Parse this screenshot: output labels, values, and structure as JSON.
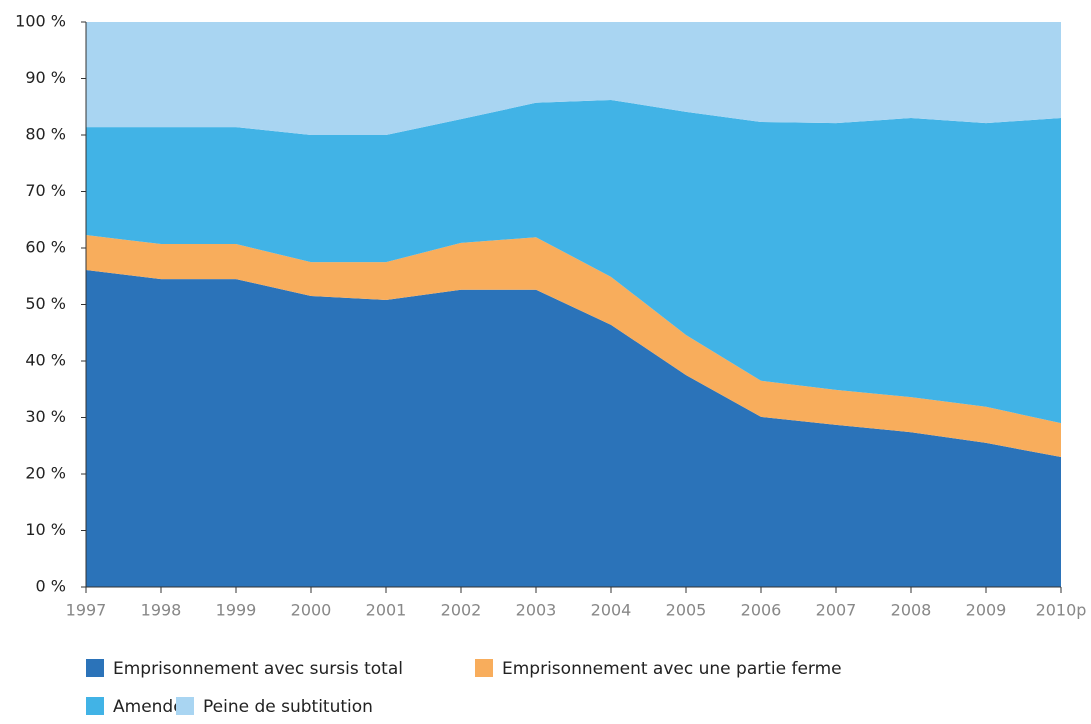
{
  "chart_data": {
    "type": "stacked_area",
    "categories": [
      "1997",
      "1998",
      "1999",
      "2000",
      "2001",
      "2002",
      "2003",
      "2004",
      "2005",
      "2006",
      "2007",
      "2008",
      "2009",
      "2010p"
    ],
    "series": [
      {
        "name": "Emprisonnement avec sursis total",
        "color": "#2b73b9",
        "values": [
          56.1,
          54.5,
          54.5,
          51.5,
          50.8,
          52.6,
          52.6,
          46.4,
          37.5,
          30.1,
          28.7,
          27.4,
          25.5,
          23.0
        ]
      },
      {
        "name": "Emprisonnement avec une partie ferme",
        "color": "#f8ad5c",
        "values": [
          6.2,
          6.2,
          6.2,
          6.0,
          6.7,
          8.3,
          9.3,
          8.5,
          7.1,
          6.4,
          6.2,
          6.2,
          6.4,
          6.0
        ]
      },
      {
        "name": "Amende",
        "color": "#41b3e6",
        "values": [
          19.1,
          20.7,
          20.7,
          22.5,
          22.5,
          21.9,
          23.8,
          31.3,
          39.5,
          45.8,
          47.2,
          49.4,
          50.2,
          54.0
        ]
      },
      {
        "name": "Peine de subtitution",
        "color": "#a9d5f2",
        "values": [
          18.6,
          18.6,
          18.6,
          20.0,
          20.0,
          17.2,
          14.3,
          13.8,
          15.9,
          17.7,
          17.9,
          17.0,
          17.9,
          17.0
        ]
      }
    ],
    "ylim": [
      0,
      100
    ],
    "yticks": [
      {
        "value": 0,
        "label": "0 %"
      },
      {
        "value": 10,
        "label": "10 %"
      },
      {
        "value": 20,
        "label": "20 %"
      },
      {
        "value": 30,
        "label": "30 %"
      },
      {
        "value": 40,
        "label": "40 %"
      },
      {
        "value": 50,
        "label": "50 %"
      },
      {
        "value": 60,
        "label": "60 %"
      },
      {
        "value": 70,
        "label": "70 %"
      },
      {
        "value": 80,
        "label": "80 %"
      },
      {
        "value": 90,
        "label": "90 %"
      },
      {
        "value": 100,
        "label": "100 %"
      }
    ],
    "grid": false
  }
}
